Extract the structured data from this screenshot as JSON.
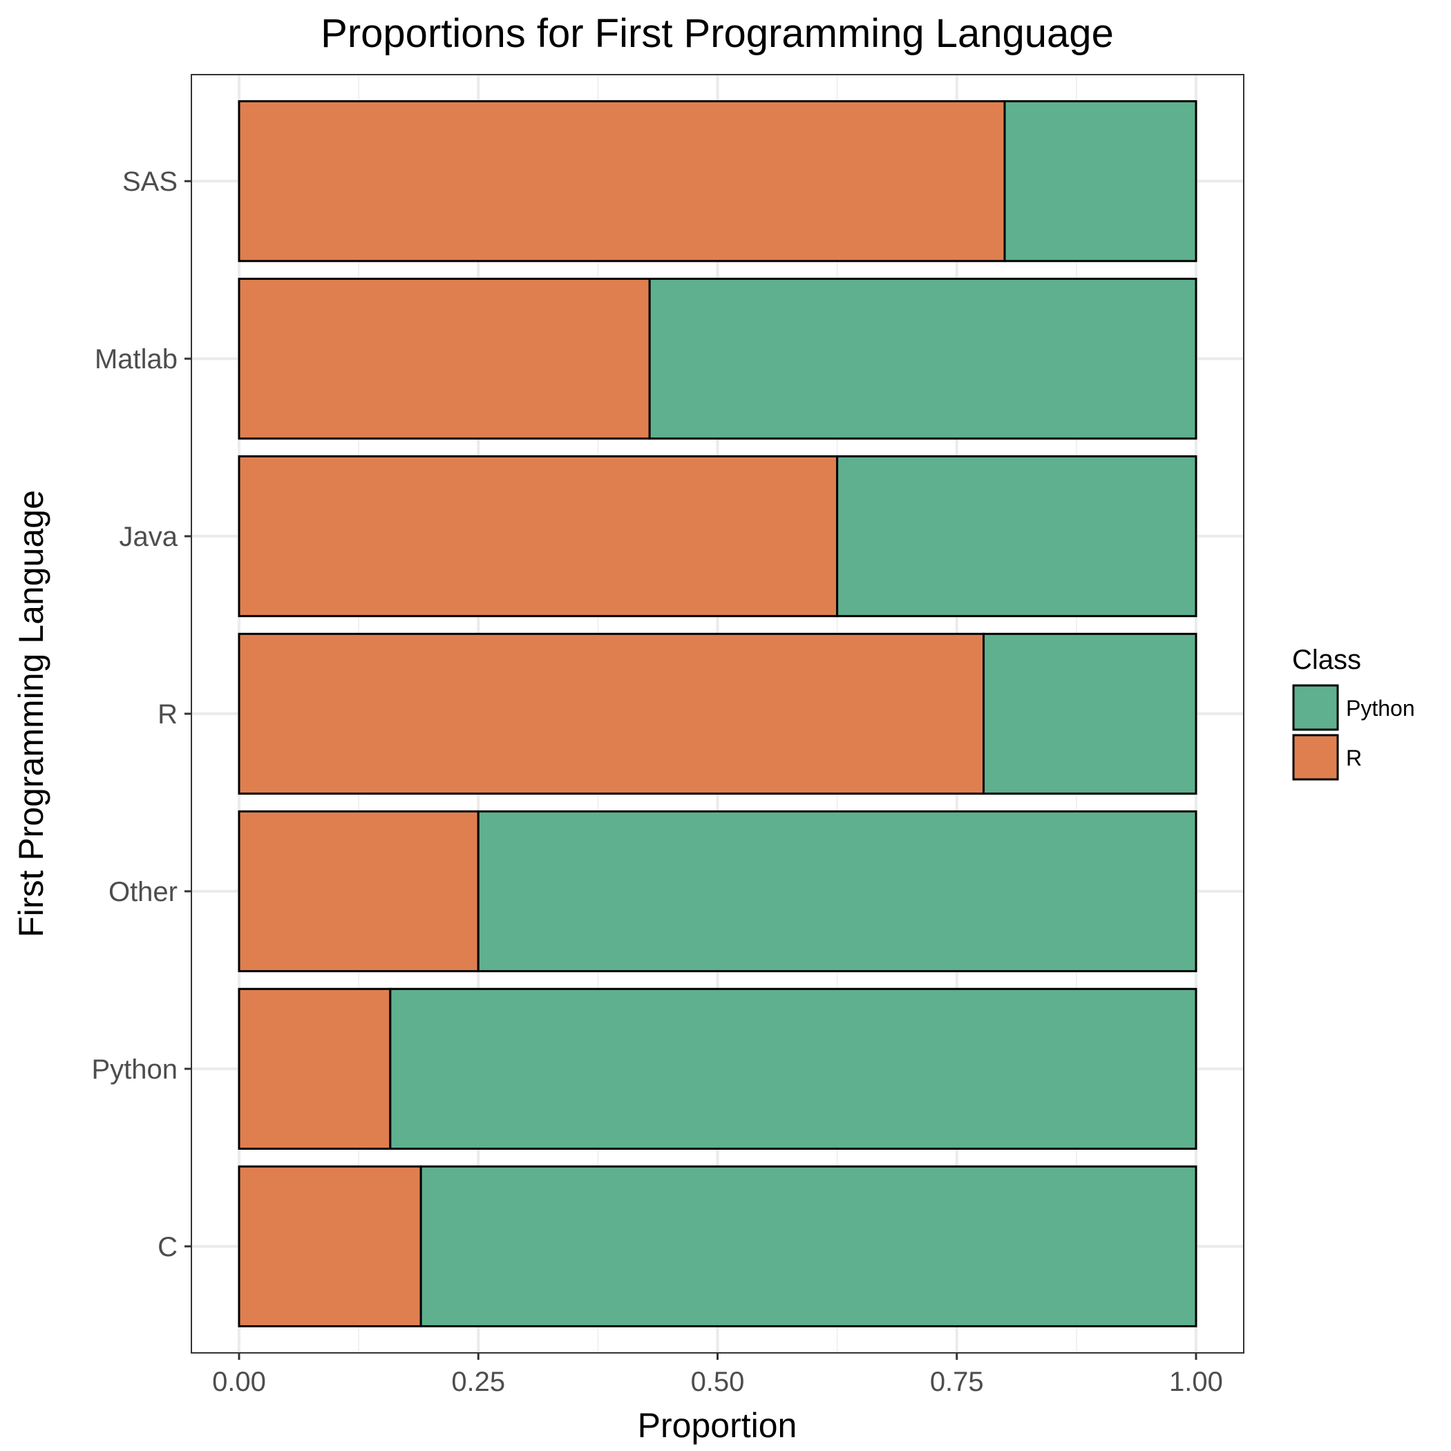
{
  "chart_data": {
    "type": "bar",
    "orientation": "horizontal",
    "stacked": "proportion",
    "title": "Proportions for First Programming Language",
    "xlabel": "Proportion",
    "ylabel": "First Programming Language",
    "categories": [
      "C",
      "Python",
      "Other",
      "R",
      "Java",
      "Matlab",
      "SAS"
    ],
    "series": [
      {
        "name": "R",
        "values": [
          0.19,
          0.158,
          0.25,
          0.778,
          0.625,
          0.429,
          0.8
        ],
        "color": "#DF7F50"
      },
      {
        "name": "Python",
        "values": [
          0.81,
          0.842,
          0.75,
          0.222,
          0.375,
          0.571,
          0.2
        ],
        "color": "#5FB08E"
      }
    ],
    "xlim": [
      0,
      1
    ],
    "x_ticks": [
      "0.00",
      "0.25",
      "0.50",
      "0.75",
      "1.00"
    ],
    "grid": true,
    "legend": {
      "title": "Class",
      "placement": "right",
      "entries": [
        "Python",
        "R"
      ]
    }
  }
}
